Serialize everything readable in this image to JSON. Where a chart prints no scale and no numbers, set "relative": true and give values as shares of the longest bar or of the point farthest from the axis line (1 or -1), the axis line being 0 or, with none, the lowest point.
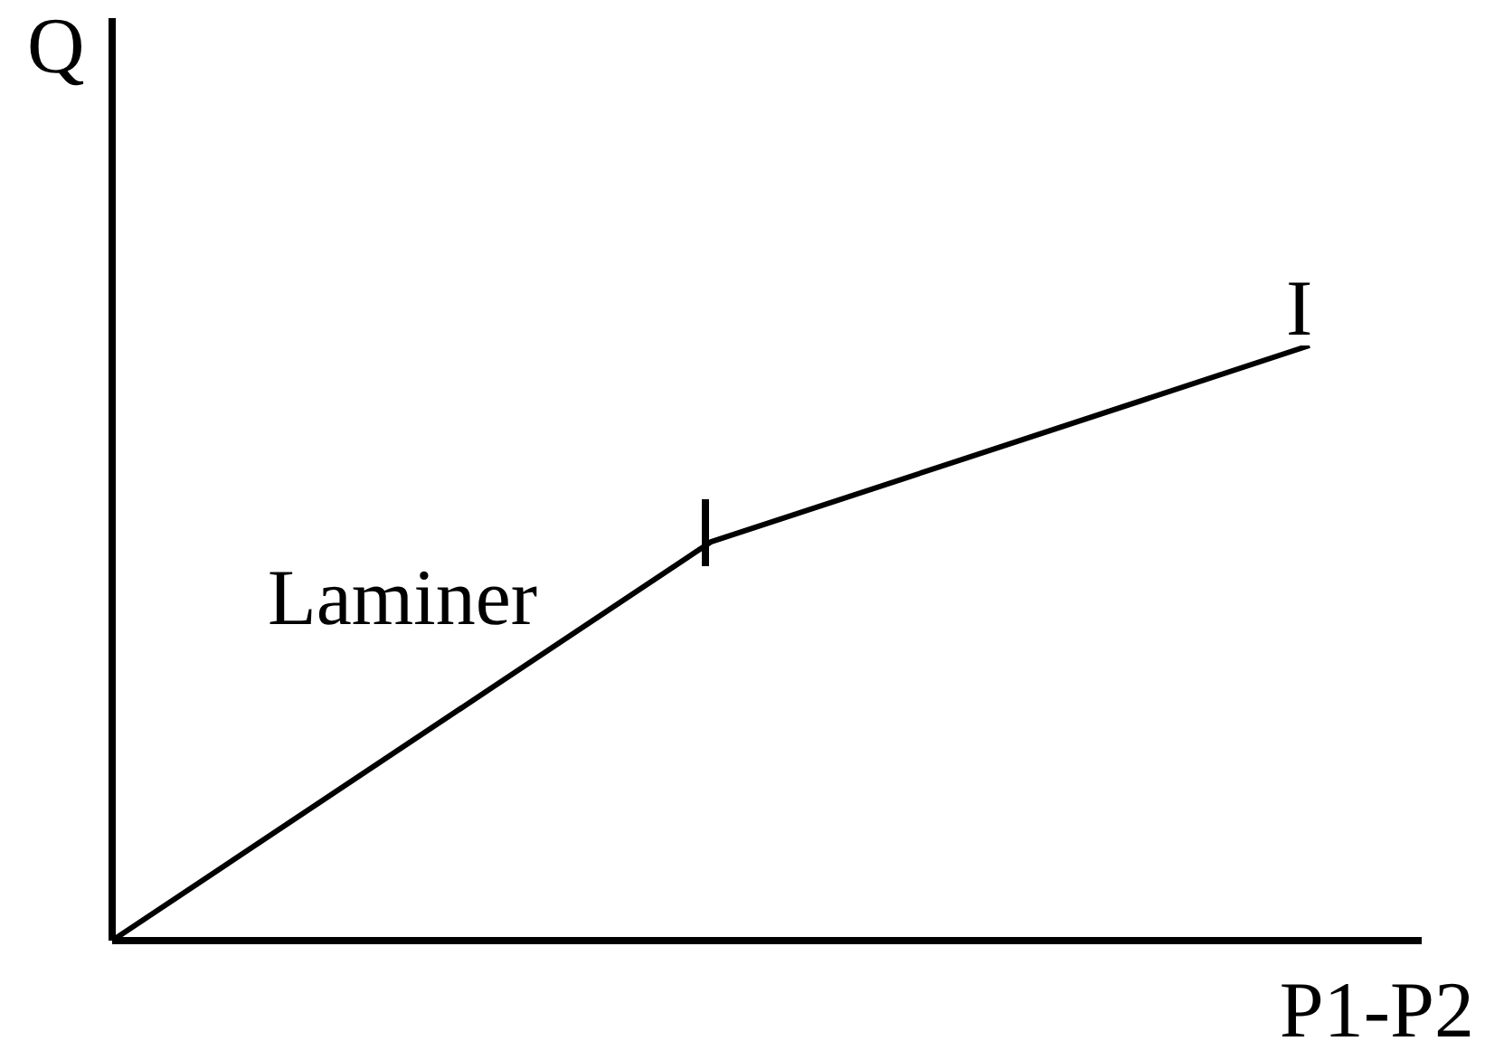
{
  "chart_data": {
    "type": "line",
    "categories": [
      null,
      null,
      null
    ],
    "values": [
      0,
      0.67,
      1
    ],
    "color": "#000000",
    "relative": true,
    "xlabel": "P1-P2",
    "ylabel": "Q",
    "annotations": [
      "Laminer",
      "I"
    ]
  }
}
